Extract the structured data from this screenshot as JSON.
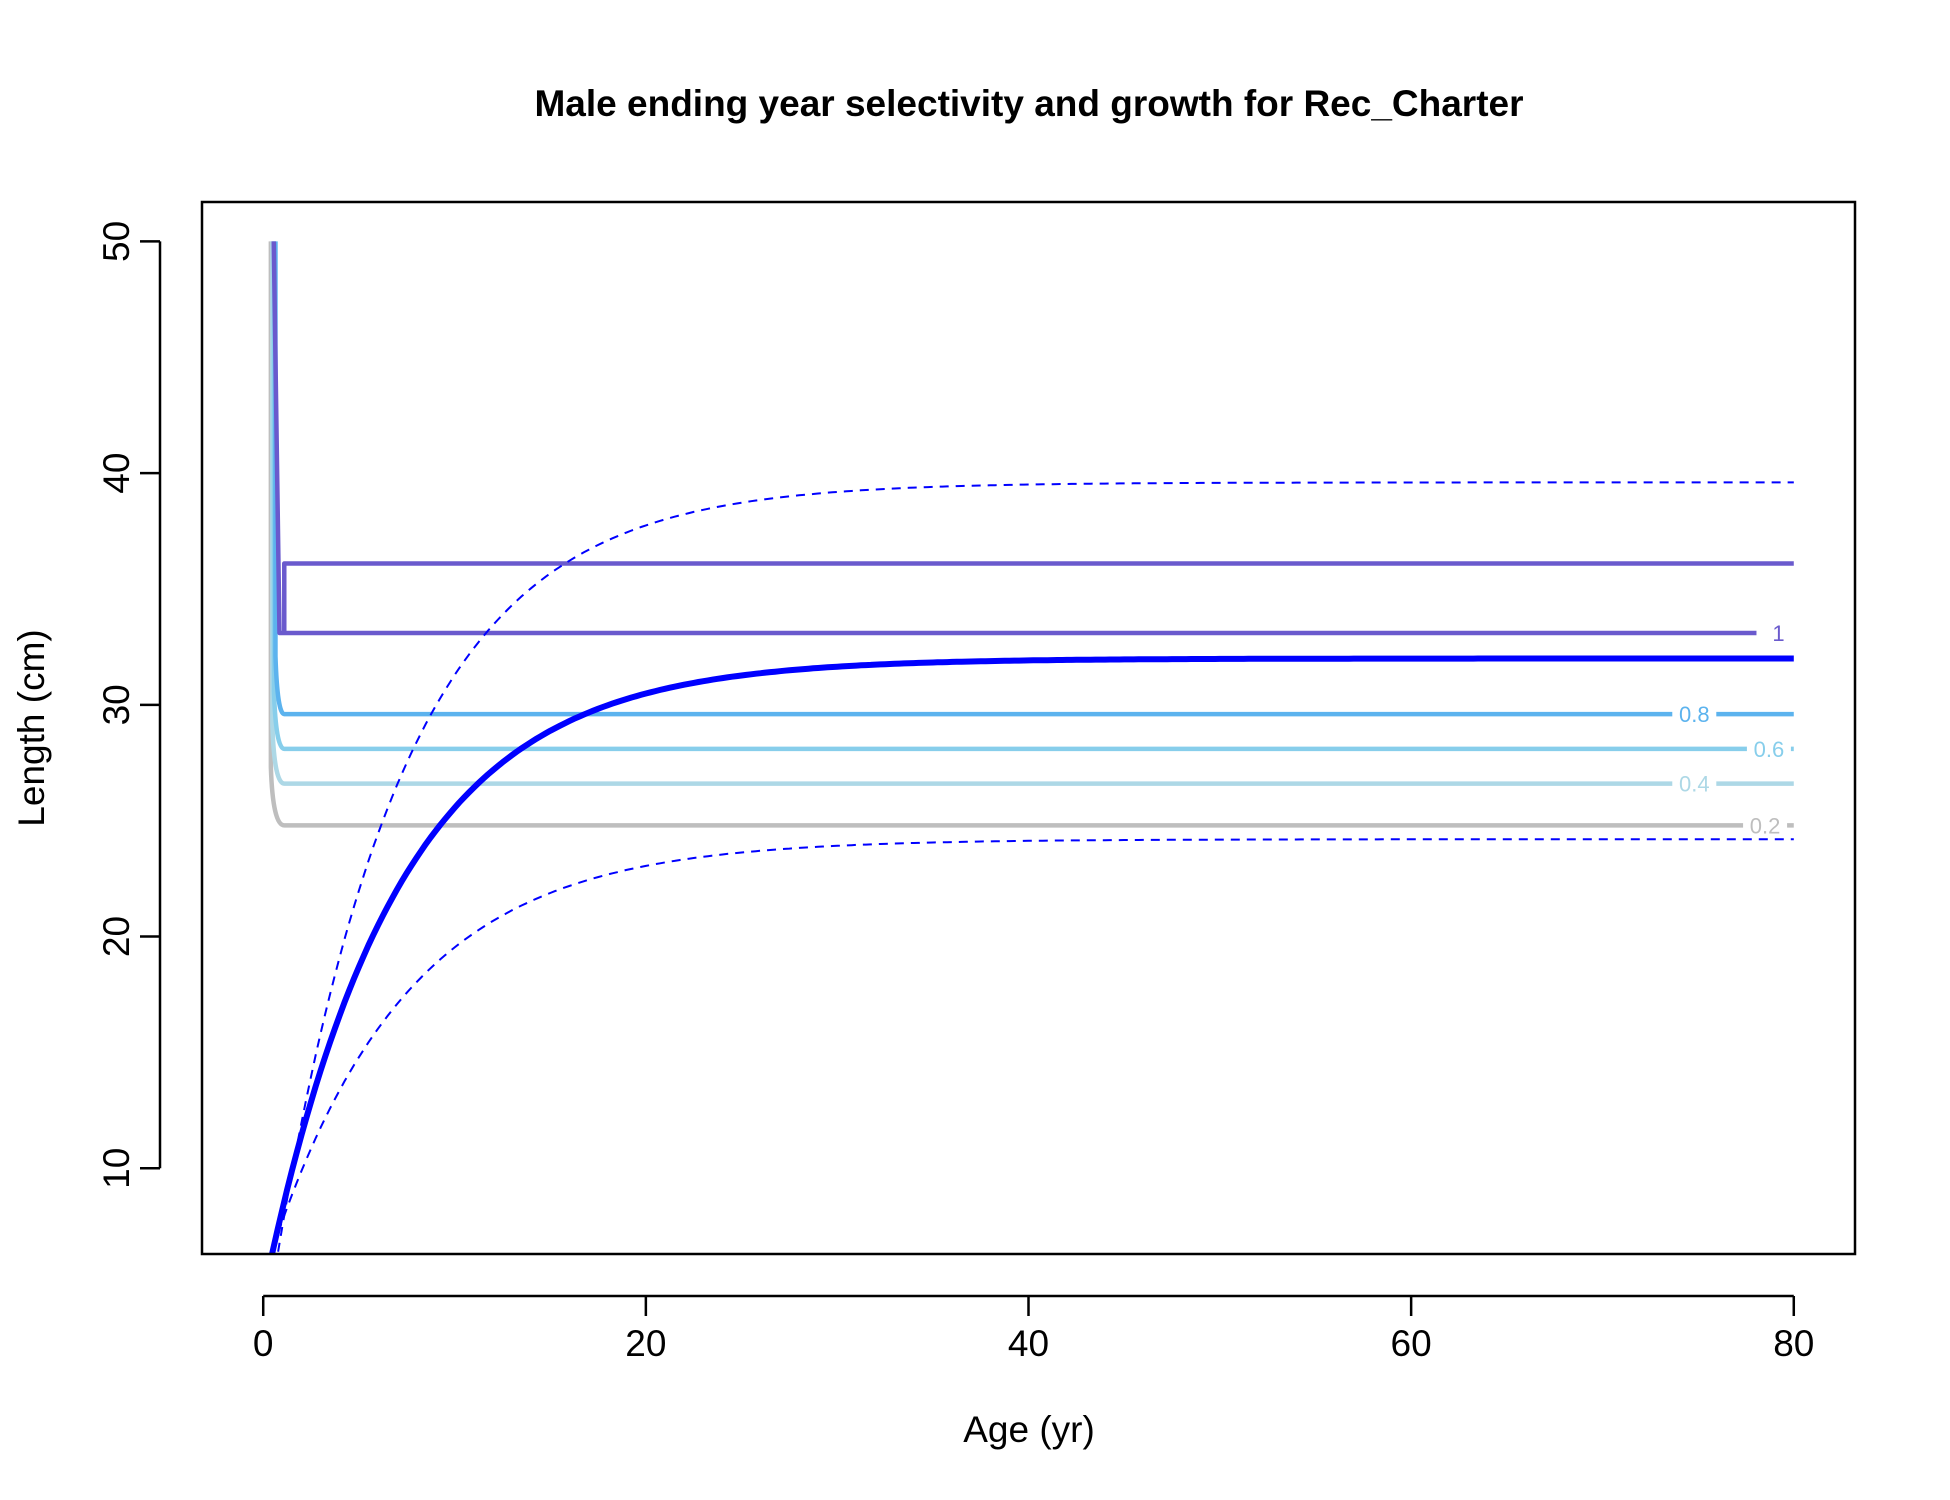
{
  "chart_data": {
    "type": "line",
    "title": "Male ending year selectivity and growth for Rec_Charter",
    "xlabel": "Age (yr)",
    "ylabel": "Length (cm)",
    "xlim": [
      -3.2,
      83.2
    ],
    "ylim": [
      6.3,
      51.7
    ],
    "x_ticks": [
      0,
      20,
      40,
      60,
      80
    ],
    "y_ticks": [
      10,
      20,
      30,
      40,
      50
    ],
    "growth": {
      "linf": 32.0,
      "k": 0.145,
      "t0": -1.05,
      "upper": {
        "linf": 39.6,
        "k": 0.15,
        "t0": -0.4
      },
      "lower": {
        "linf": 24.2,
        "k": 0.14,
        "t0": -1.75
      },
      "color": "#0000ff"
    },
    "selectivity_contours": [
      {
        "label": "0.2",
        "color": "#bebebe",
        "length": 24.8,
        "label_age": 78.5
      },
      {
        "label": "0.4",
        "color": "#add8e6",
        "length": 26.6,
        "label_age": 74.8
      },
      {
        "label": "0.6",
        "color": "#87ceeb",
        "length": 28.1,
        "label_age": 78.7
      },
      {
        "label": "0.8",
        "color": "#5cb3ee",
        "length": 29.6,
        "label_age": 74.8
      },
      {
        "label": "1",
        "color": "#6a5acd",
        "length": 33.1,
        "label_age": 79.2,
        "upper_length": 36.1
      }
    ]
  }
}
